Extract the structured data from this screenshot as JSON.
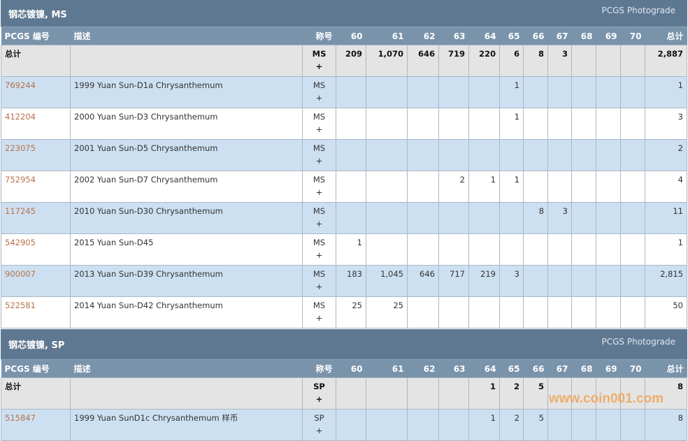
{
  "columns": [
    "PCGS 编号",
    "描述",
    "称号",
    "60",
    "61",
    "62",
    "63",
    "64",
    "65",
    "66",
    "67",
    "68",
    "69",
    "70",
    "总计"
  ],
  "sections": [
    {
      "title": "钢芯镀镍, MS",
      "photograde": "PCGS Photograde",
      "total": {
        "label": "总计",
        "designation": "MS",
        "plus": "+",
        "grades": [
          "209",
          "1,070",
          "646",
          "719",
          "220",
          "6",
          "8",
          "3",
          "",
          "",
          ""
        ],
        "total": "2,887"
      },
      "rows": [
        {
          "pcgs": "769244",
          "desc": "1999 Yuan Sun-D1a Chrysanthemum",
          "designation": "MS",
          "plus": "+",
          "grades": [
            "",
            "",
            "",
            "",
            "",
            "1",
            "",
            "",
            "",
            "",
            ""
          ],
          "total": "1"
        },
        {
          "pcgs": "412204",
          "desc": "2000 Yuan Sun-D3 Chrysanthemum",
          "designation": "MS",
          "plus": "+",
          "grades": [
            "",
            "",
            "",
            "",
            "",
            "1",
            "",
            "",
            "",
            "",
            ""
          ],
          "total": "3"
        },
        {
          "pcgs": "223075",
          "desc": "2001 Yuan Sun-D5 Chrysanthemum",
          "designation": "MS",
          "plus": "+",
          "grades": [
            "",
            "",
            "",
            "",
            "",
            "",
            "",
            "",
            "",
            "",
            ""
          ],
          "total": "2"
        },
        {
          "pcgs": "752954",
          "desc": "2002 Yuan Sun-D7 Chrysanthemum",
          "designation": "MS",
          "plus": "+",
          "grades": [
            "",
            "",
            "",
            "2",
            "1",
            "1",
            "",
            "",
            "",
            "",
            ""
          ],
          "total": "4"
        },
        {
          "pcgs": "117245",
          "desc": "2010 Yuan Sun-D30 Chrysanthemum",
          "designation": "MS",
          "plus": "+",
          "grades": [
            "",
            "",
            "",
            "",
            "",
            "",
            "8",
            "3",
            "",
            "",
            ""
          ],
          "total": "11"
        },
        {
          "pcgs": "542905",
          "desc": "2015 Yuan Sun-D45",
          "designation": "MS",
          "plus": "+",
          "grades": [
            "1",
            "",
            "",
            "",
            "",
            "",
            "",
            "",
            "",
            "",
            ""
          ],
          "total": "1"
        },
        {
          "pcgs": "900007",
          "desc": "2013 Yuan Sun-D39 Chrysanthemum",
          "designation": "MS",
          "plus": "+",
          "grades": [
            "183",
            "1,045",
            "646",
            "717",
            "219",
            "3",
            "",
            "",
            "",
            "",
            ""
          ],
          "total": "2,815"
        },
        {
          "pcgs": "522581",
          "desc": "2014 Yuan Sun-D42 Chrysanthemum",
          "designation": "MS",
          "plus": "+",
          "grades": [
            "25",
            "25",
            "",
            "",
            "",
            "",
            "",
            "",
            "",
            "",
            ""
          ],
          "total": "50"
        }
      ]
    },
    {
      "title": "钢芯镀镍, SP",
      "photograde": "PCGS Photograde",
      "total": {
        "label": "总计",
        "designation": "SP",
        "plus": "+",
        "grades": [
          "",
          "",
          "",
          "",
          "1",
          "2",
          "5",
          "",
          "",
          "",
          ""
        ],
        "total": "8"
      },
      "rows": [
        {
          "pcgs": "515847",
          "desc": "1999 Yuan SunD1c Chrysanthemum 样币",
          "designation": "SP",
          "plus": "+",
          "grades": [
            "",
            "",
            "",
            "",
            "1",
            "2",
            "5",
            "",
            "",
            "",
            ""
          ],
          "total": "8"
        }
      ]
    }
  ],
  "watermark": "www.coin001.com"
}
